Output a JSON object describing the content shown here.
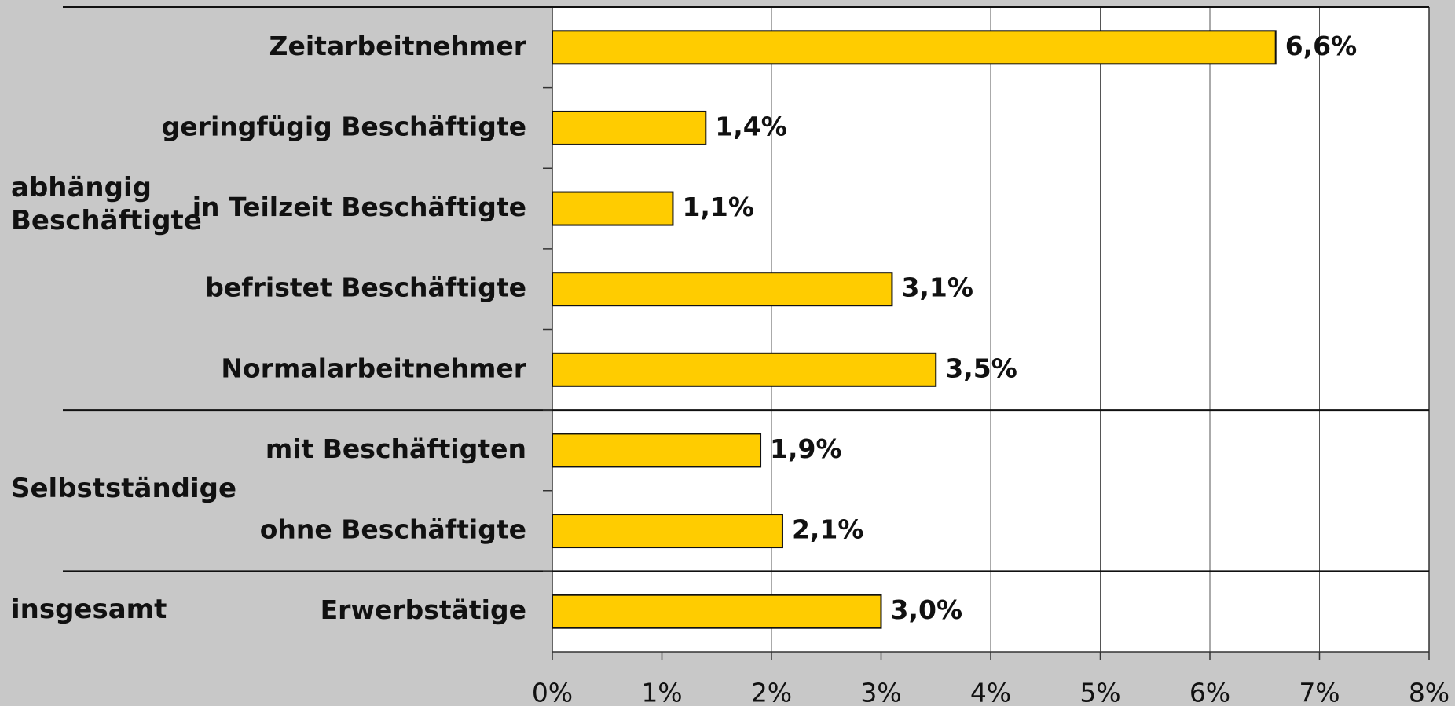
{
  "chart_data": {
    "type": "bar",
    "orientation": "horizontal",
    "color": "#ffcc00",
    "grid": true,
    "groups": [
      {
        "label": "abhängig Beschäftigte",
        "categories": [
          "Zeitarbeitnehmer",
          "geringfügig Beschäftigte",
          "in Teilzeit Beschäftigte",
          "befristet Beschäftigte",
          "Normalarbeitnehmer"
        ],
        "values": [
          6.6,
          1.4,
          1.1,
          3.1,
          3.5
        ],
        "value_labels": [
          "6,6%",
          "1,4%",
          "1,1%",
          "3,1%",
          "3,5%"
        ]
      },
      {
        "label": "Selbstständige",
        "categories": [
          "mit Beschäftigten",
          "ohne Beschäftigte"
        ],
        "values": [
          1.9,
          2.1
        ],
        "value_labels": [
          "1,9%",
          "2,1%"
        ]
      },
      {
        "label": "insgesamt",
        "categories": [
          "Erwerbstätige"
        ],
        "values": [
          3.0
        ],
        "value_labels": [
          "3,0%"
        ]
      }
    ],
    "xlim": [
      0,
      8
    ],
    "xticks": [
      {
        "value": 0,
        "label": "0%"
      },
      {
        "value": 1,
        "label": "1%"
      },
      {
        "value": 2,
        "label": "2%"
      },
      {
        "value": 3,
        "label": "3%"
      },
      {
        "value": 4,
        "label": "4%"
      },
      {
        "value": 5,
        "label": "5%"
      },
      {
        "value": 6,
        "label": "6%"
      },
      {
        "value": 7,
        "label": "7%"
      },
      {
        "value": 8,
        "label": "8%"
      }
    ]
  }
}
